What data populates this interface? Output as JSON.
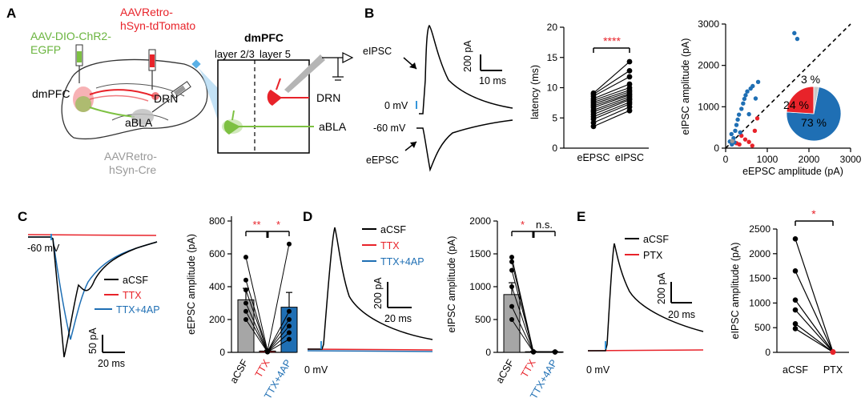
{
  "panels": {
    "A": "A",
    "B": "B",
    "C": "C",
    "D": "D",
    "E": "E"
  },
  "colors": {
    "red": "#e8232a",
    "blue": "#1f6fb4",
    "green": "#7dc142",
    "gray": "#9a9a9a",
    "black": "#000000"
  },
  "panelA": {
    "virus_green_1": "AAV-DIO-ChR2-",
    "virus_green_2": "EGFP",
    "virus_red_1": "AAVRetro-",
    "virus_red_2": "hSyn-tdTomato",
    "region_dmpfc": "dmPFC",
    "region_drn": "DRN",
    "region_abla": "aBLA",
    "virus_gray_1": "AAVRetro-",
    "virus_gray_2": "hSyn-Cre",
    "box_title": "dmPFC",
    "layer23": "layer 2/3",
    "layer5": "layer 5",
    "box_drn": "DRN",
    "box_abla": "aBLA"
  },
  "panelB_traces": {
    "eipsc": "eIPSC",
    "epsc": "eEPSC",
    "v0": "0 mV",
    "v60": "-60 mV",
    "scale_y": "200 pA",
    "scale_x": "10 ms"
  },
  "chart_data": [
    {
      "id": "B-latency",
      "type": "scatter",
      "ylabel": "latency (ms)",
      "ylim": [
        0,
        20
      ],
      "yticks": [
        "0",
        "5",
        "10",
        "15",
        "20"
      ],
      "categories": [
        "eEPSC",
        "eIPSC"
      ],
      "significance": "****",
      "pairs": [
        [
          3.6,
          6.2
        ],
        [
          4.2,
          6.8
        ],
        [
          4.8,
          7.3
        ],
        [
          5.2,
          7.6
        ],
        [
          5.6,
          8.0
        ],
        [
          6.0,
          8.2
        ],
        [
          6.3,
          8.5
        ],
        [
          6.7,
          8.8
        ],
        [
          7.0,
          9.0
        ],
        [
          7.3,
          9.3
        ],
        [
          7.6,
          9.6
        ],
        [
          7.9,
          10.0
        ],
        [
          8.2,
          10.6
        ],
        [
          8.6,
          11.8
        ],
        [
          8.9,
          12.8
        ],
        [
          9.1,
          14.3
        ]
      ]
    },
    {
      "id": "B-amplitude",
      "type": "scatter",
      "xlabel": "eEPSC amplitude (pA)",
      "ylabel": "eIPSC amplitude (pA)",
      "xlim": [
        0,
        3000
      ],
      "ylim": [
        0,
        3000
      ],
      "xticks": [
        "0",
        "1000",
        "2000",
        "3000"
      ],
      "yticks": [
        "0",
        "1000",
        "2000",
        "3000"
      ],
      "blue_points": [
        [
          100,
          160
        ],
        [
          140,
          340
        ],
        [
          190,
          240
        ],
        [
          230,
          420
        ],
        [
          260,
          560
        ],
        [
          290,
          690
        ],
        [
          320,
          810
        ],
        [
          350,
          380
        ],
        [
          380,
          950
        ],
        [
          420,
          1080
        ],
        [
          450,
          1190
        ],
        [
          480,
          1280
        ],
        [
          520,
          1370
        ],
        [
          560,
          820
        ],
        [
          600,
          1440
        ],
        [
          650,
          1500
        ],
        [
          720,
          1200
        ],
        [
          780,
          1600
        ],
        [
          1650,
          2780
        ],
        [
          1720,
          2640
        ],
        [
          150,
          90
        ],
        [
          210,
          140
        ]
      ],
      "red_points": [
        [
          260,
          120
        ],
        [
          330,
          90
        ],
        [
          470,
          210
        ],
        [
          560,
          150
        ],
        [
          640,
          60
        ],
        [
          700,
          420
        ],
        [
          760,
          720
        ],
        [
          380,
          300
        ]
      ],
      "gray_points": [
        [
          160,
          170
        ]
      ],
      "pie": {
        "slices": [
          {
            "label": "73 %",
            "value": 73
          },
          {
            "label": "24 %",
            "value": 24
          },
          {
            "label": "3 %",
            "value": 3
          }
        ]
      }
    },
    {
      "id": "C-bar",
      "type": "bar",
      "ylabel": "eEPSC amplitude (pA)",
      "ylim": [
        0,
        800
      ],
      "yticks": [
        "0",
        "200",
        "400",
        "600",
        "800"
      ],
      "categories": [
        "aCSF",
        "TTX",
        "TTX+4AP"
      ],
      "values": [
        320,
        8,
        275
      ],
      "errors": [
        70,
        5,
        90
      ],
      "sig1": "**",
      "sig2": "*",
      "pairs": [
        [
          580,
          10,
          660
        ],
        [
          440,
          5,
          250
        ],
        [
          380,
          6,
          200
        ],
        [
          300,
          4,
          160
        ],
        [
          250,
          3,
          120
        ],
        [
          200,
          2,
          80
        ]
      ]
    },
    {
      "id": "D-bar",
      "type": "bar",
      "ylabel": "eIPSC amplitude (pA)",
      "ylim": [
        0,
        2000
      ],
      "yticks": [
        "0",
        "500",
        "1000",
        "1500",
        "2000"
      ],
      "categories": [
        "aCSF",
        "TTX",
        "TTX+4AP"
      ],
      "values": [
        880,
        10,
        8
      ],
      "errors": [
        180,
        6,
        6
      ],
      "sig1": "*",
      "sig2": "n.s.",
      "pairs": [
        [
          1450,
          10,
          8
        ],
        [
          1380,
          8,
          6
        ],
        [
          1250,
          12,
          10
        ],
        [
          1000,
          6,
          4
        ],
        [
          700,
          4,
          3
        ],
        [
          500,
          3,
          2
        ]
      ]
    },
    {
      "id": "E-paired",
      "type": "scatter",
      "ylabel": "eIPSC amplitude (pA)",
      "ylim": [
        0,
        2500
      ],
      "yticks": [
        "0",
        "500",
        "1000",
        "1500",
        "2000",
        "2500"
      ],
      "categories": [
        "aCSF",
        "PTX"
      ],
      "significance": "*",
      "pairs": [
        [
          2300,
          10
        ],
        [
          1650,
          8
        ],
        [
          1060,
          12
        ],
        [
          860,
          6
        ],
        [
          580,
          5
        ],
        [
          480,
          4
        ]
      ]
    }
  ],
  "panelC_traces": {
    "v60": "-60 mV",
    "leg1": "aCSF",
    "leg2": "TTX",
    "leg3": "TTX+4AP",
    "scale_y": "50 pA",
    "scale_x": "20 ms"
  },
  "panelD_traces": {
    "leg1": "aCSF",
    "leg2": "TTX",
    "leg3": "TTX+4AP",
    "scale_y": "200 pA",
    "scale_x": "20 ms",
    "v0": "0 mV"
  },
  "panelE_traces": {
    "leg1": "aCSF",
    "leg2": "PTX",
    "scale_y": "200 pA",
    "scale_x": "20 ms",
    "v0": "0 mV"
  }
}
